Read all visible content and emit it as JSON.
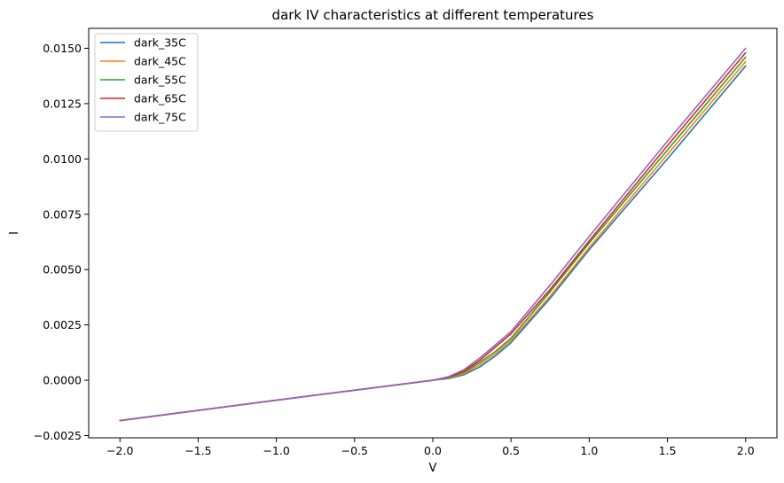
{
  "chart_data": {
    "type": "line",
    "title": "dark IV characteristics at different temperatures",
    "xlabel": "V",
    "ylabel": "I",
    "xlim": [
      -2.2,
      2.2
    ],
    "ylim": [
      -0.0026,
      0.0159
    ],
    "xticks": [
      -2.0,
      -1.5,
      -1.0,
      -0.5,
      0.0,
      0.5,
      1.0,
      1.5,
      2.0
    ],
    "xtick_labels": [
      "−2.0",
      "−1.5",
      "−1.0",
      "−0.5",
      "0.0",
      "0.5",
      "1.0",
      "1.5",
      "2.0"
    ],
    "yticks": [
      -0.0025,
      0.0,
      0.0025,
      0.005,
      0.0075,
      0.01,
      0.0125,
      0.015
    ],
    "ytick_labels": [
      "−0.0025",
      "0.0000",
      "0.0025",
      "0.0050",
      "0.0075",
      "0.0100",
      "0.0125",
      "0.0150"
    ],
    "grid": false,
    "legend_position": "top-left",
    "x": [
      -2.0,
      -1.5,
      -1.0,
      -0.5,
      0.0,
      0.1,
      0.2,
      0.3,
      0.4,
      0.5,
      0.75,
      1.0,
      1.5,
      2.0
    ],
    "series": [
      {
        "name": "dark_35C",
        "color": "#1f77b4",
        "values": [
          -0.00182,
          -0.00136,
          -0.0009,
          -0.00045,
          0.0,
          8e-05,
          0.00025,
          0.0006,
          0.0011,
          0.0017,
          0.0037,
          0.0059,
          0.01,
          0.0142
        ]
      },
      {
        "name": "dark_45C",
        "color": "#ff7f0e",
        "values": [
          -0.00182,
          -0.00136,
          -0.0009,
          -0.00045,
          0.0,
          0.0001,
          0.0003,
          0.0007,
          0.0012,
          0.0018,
          0.0038,
          0.006,
          0.0102,
          0.0144
        ]
      },
      {
        "name": "dark_55C",
        "color": "#2ca02c",
        "values": [
          -0.00182,
          -0.00136,
          -0.0009,
          -0.00045,
          0.0,
          0.00012,
          0.00036,
          0.0008,
          0.0013,
          0.0019,
          0.004,
          0.0062,
          0.0104,
          0.0146
        ]
      },
      {
        "name": "dark_65C",
        "color": "#d62728",
        "values": [
          -0.00182,
          -0.00136,
          -0.0009,
          -0.00045,
          0.0,
          0.00014,
          0.00042,
          0.0009,
          0.0015,
          0.0021,
          0.0041,
          0.0063,
          0.0106,
          0.0148
        ]
      },
      {
        "name": "dark_75C",
        "color": "#9467bd",
        "values": [
          -0.00182,
          -0.00136,
          -0.0009,
          -0.00045,
          0.0,
          0.00016,
          0.00048,
          0.001,
          0.0016,
          0.0022,
          0.0043,
          0.0065,
          0.0108,
          0.015
        ]
      }
    ]
  }
}
